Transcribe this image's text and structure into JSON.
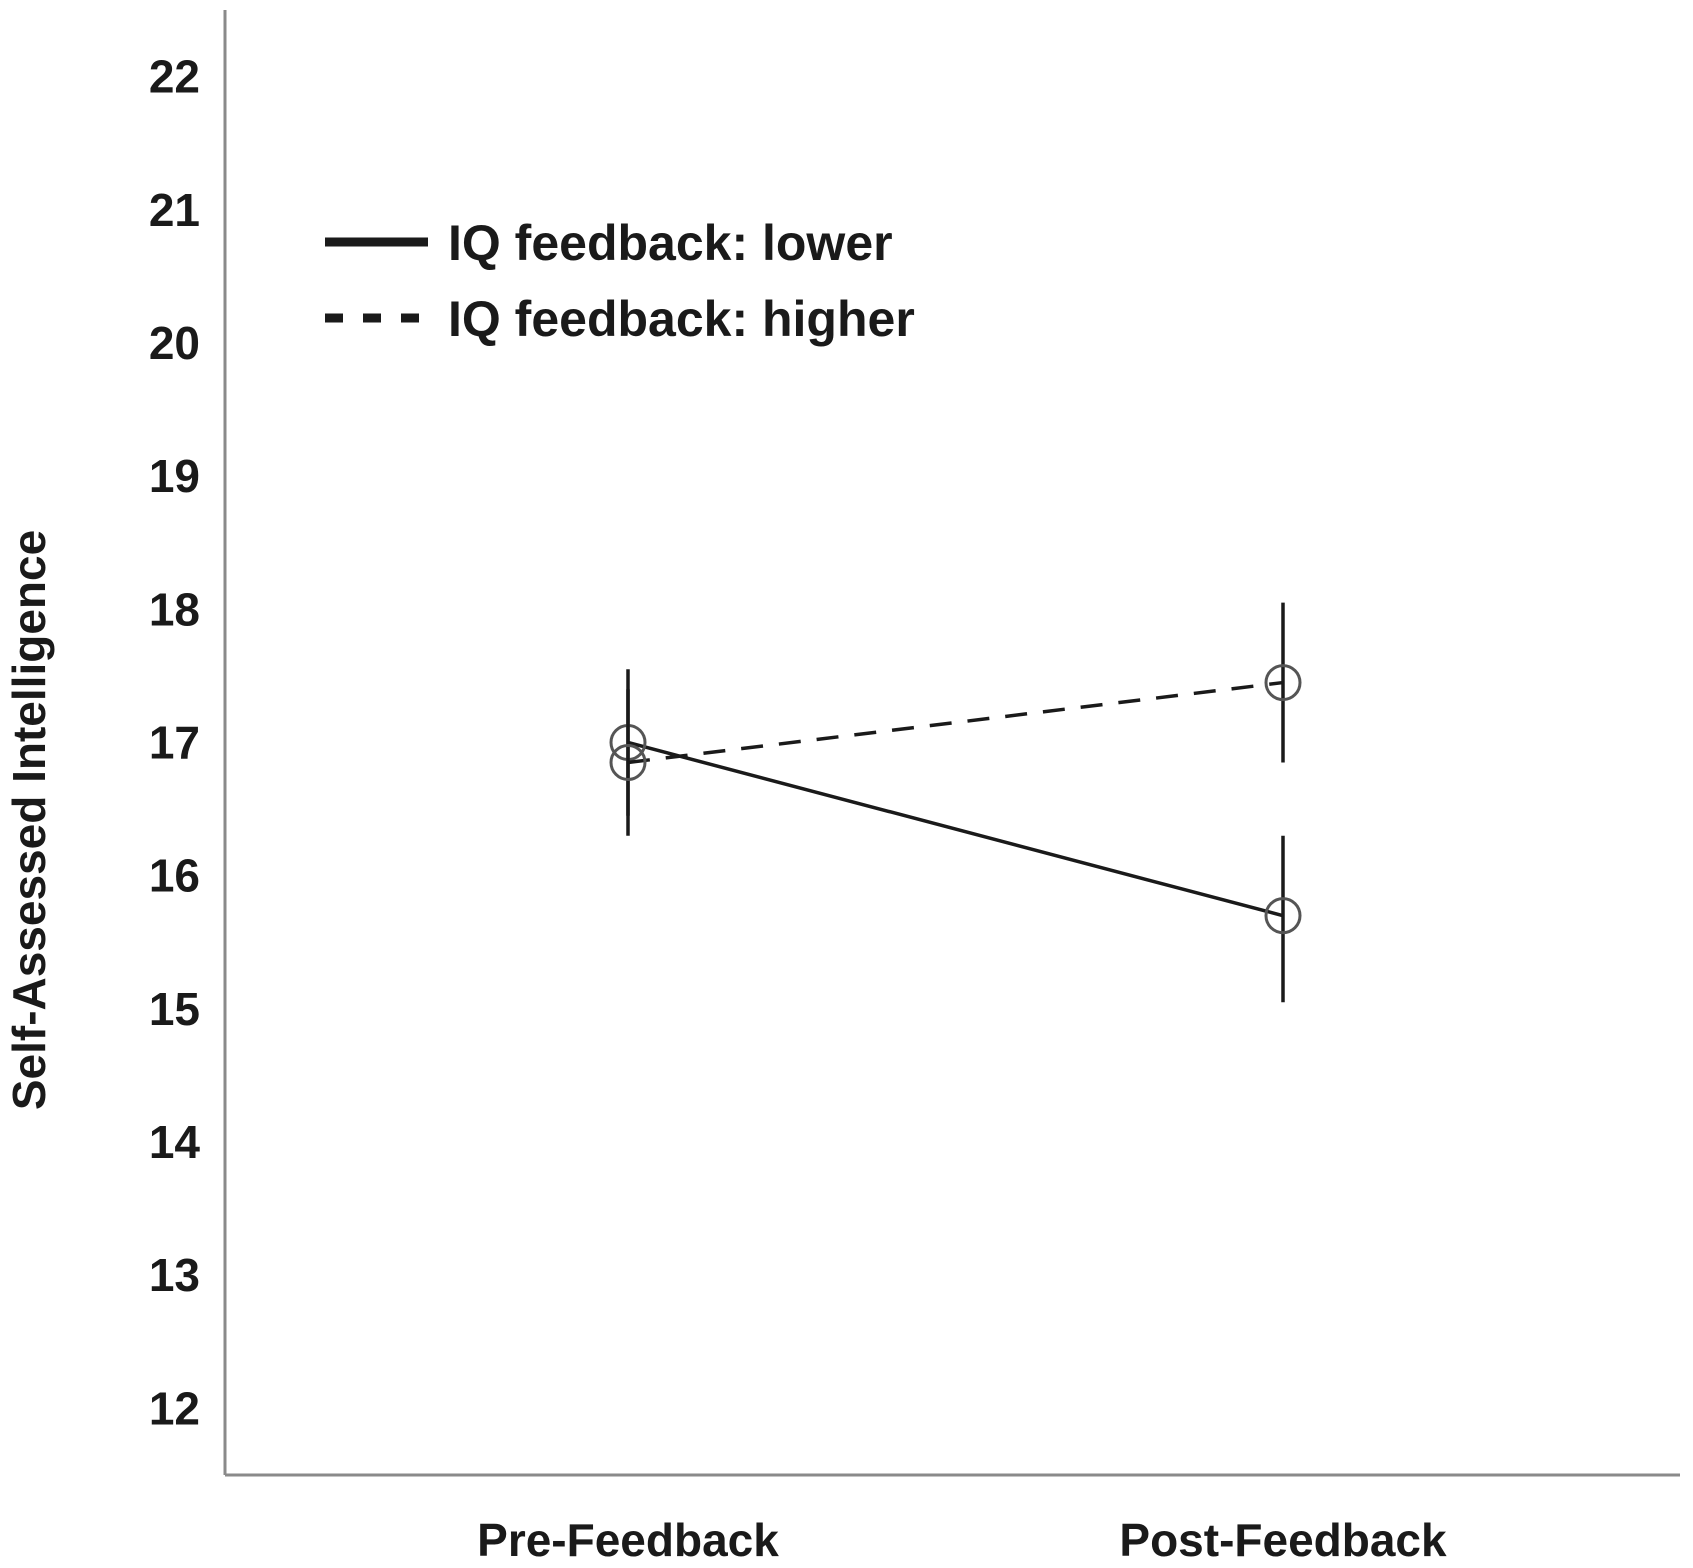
{
  "chart_data": {
    "type": "line",
    "categories": [
      "Pre-Feedback",
      "Post-Feedback"
    ],
    "xlabel": "",
    "ylabel": "Self-Assessed Intelligence",
    "ylim": [
      11.5,
      22.5
    ],
    "yticks": [
      12,
      13,
      14,
      15,
      16,
      17,
      18,
      19,
      20,
      21,
      22
    ],
    "grid": false,
    "legend_position": "top-left",
    "series": [
      {
        "name": "IQ feedback: lower",
        "line_style": "solid",
        "values": [
          17.0,
          15.7
        ],
        "error_low": [
          16.45,
          15.05
        ],
        "error_high": [
          17.55,
          16.3
        ]
      },
      {
        "name": "IQ feedback: higher",
        "line_style": "dashed",
        "values": [
          16.85,
          17.45
        ],
        "error_low": [
          16.3,
          16.85
        ],
        "error_high": [
          17.4,
          18.05
        ]
      }
    ],
    "line_color": "#1a1a1a",
    "axis_color": "#8a8a8a"
  }
}
